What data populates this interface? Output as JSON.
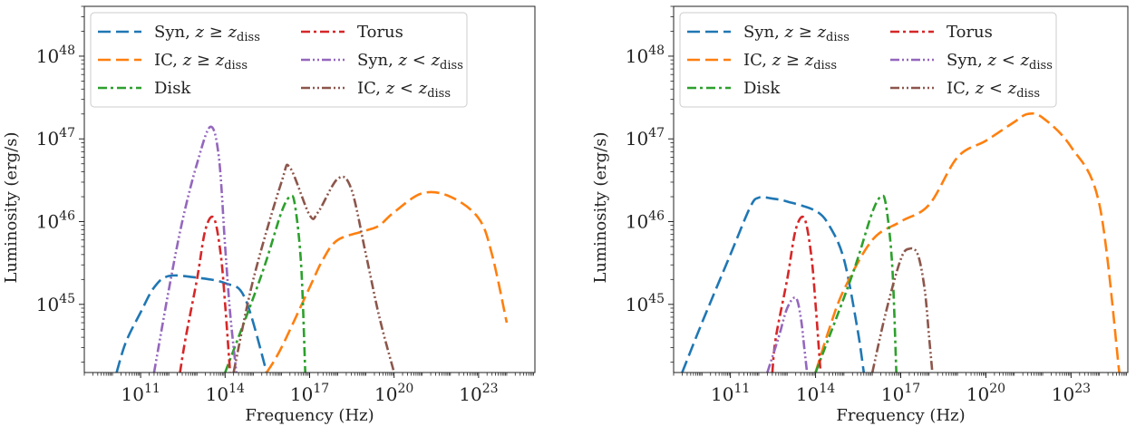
{
  "chart_data": [
    {
      "type": "line",
      "xlabel": "Frequency (Hz)",
      "ylabel": "Luminosity (erg/s)",
      "x_scale": "log",
      "y_scale": "log",
      "xlim": [
        1000000000.0,
        1e+25
      ],
      "ylim": [
        1.5e+44,
        4e+48
      ],
      "xticks": [
        {
          "value": 100000000000.0,
          "label": "10^11"
        },
        {
          "value": 100000000000000.0,
          "label": "10^14"
        },
        {
          "value": 1e+17,
          "label": "10^17"
        },
        {
          "value": 1e+20,
          "label": "10^20"
        },
        {
          "value": 1e+23,
          "label": "10^23"
        }
      ],
      "yticks": [
        {
          "value": 1e+45,
          "label": "10^45"
        },
        {
          "value": 1e+46,
          "label": "10^46"
        },
        {
          "value": 1e+47,
          "label": "10^47"
        },
        {
          "value": 1e+48,
          "label": "10^48"
        }
      ],
      "legend_position": "top",
      "series": [
        {
          "name": "Syn, z ≥ z_diss",
          "color": "#1f77b4",
          "dash": "dashed",
          "x": [
            14000000000.0,
            30000000000.0,
            100000000000.0,
            300000000000.0,
            1000000000000.0,
            10000000000000.0,
            100000000000000.0,
            500000000000000.0,
            3000000000000000.0
          ],
          "y": [
            1.5e+44,
            3.5e+44,
            8e+44,
            1.6e+45,
            2.2e+45,
            2.1e+45,
            1.8e+45,
            1.2e+45,
            1.5e+44
          ]
        },
        {
          "name": "IC, z ≥ z_diss",
          "color": "#ff7f0e",
          "dash": "dashed",
          "x": [
            3000000000000000.0,
            1e+16,
            1e+17,
            3e+17,
            1e+18,
            1e+19,
            3e+19,
            1e+20,
            1e+21,
            1e+22,
            1e+23,
            3e+23,
            1e+24
          ],
          "y": [
            1.5e+44,
            3e+44,
            1.6e+45,
            3.5e+45,
            6e+45,
            7.8e+45,
            9e+45,
            1.3e+46,
            2.2e+46,
            2e+46,
            1.1e+46,
            4e+45,
            6e+44
          ]
        },
        {
          "name": "Disk",
          "color": "#2ca02c",
          "dash": "dashdot",
          "x": [
            100000000000000.0,
            1000000000000000.0,
            3000000000000000.0,
            1e+16,
            2e+16,
            3e+16,
            5e+16,
            7e+16
          ],
          "y": [
            1.5e+44,
            1.2e+45,
            3.5e+45,
            1.3e+46,
            2e+46,
            1.6e+46,
            3e+45,
            1.5e+44
          ]
        },
        {
          "name": "Torus",
          "color": "#d62728",
          "dash": "dashdot",
          "x": [
            2500000000000.0,
            4000000000000.0,
            10000000000000.0,
            20000000000000.0,
            40000000000000.0,
            70000000000000.0,
            100000000000000.0,
            150000000000000.0
          ],
          "y": [
            1.5e+44,
            4e+44,
            2e+45,
            8e+45,
            1.1e+46,
            4e+45,
            1e+45,
            1.5e+44
          ]
        },
        {
          "name": "Syn, z < z_diss",
          "color": "#9467bd",
          "dash": "dashdotdot",
          "x": [
            300000000000.0,
            1000000000000.0,
            3000000000000.0,
            10000000000000.0,
            30000000000000.0,
            60000000000000.0,
            100000000000000.0,
            150000000000000.0,
            250000000000000.0
          ],
          "y": [
            1.5e+44,
            1.5e+45,
            1e+46,
            5e+46,
            1.4e+47,
            6e+46,
            5e+45,
            8e+44,
            1.5e+44
          ]
        },
        {
          "name": "IC, z < z_diss",
          "color": "#8c564b",
          "dash": "dashdotdot",
          "x": [
            200000000000000.0,
            1000000000000000.0,
            1e+16,
            2e+16,
            1e+17,
            2e+17,
            1e+18,
            3e+18,
            1e+19,
            3e+19,
            1e+20
          ],
          "y": [
            1.5e+44,
            2e+45,
            3e+46,
            4.5e+46,
            1.2e+46,
            1.3e+46,
            3.3e+46,
            2.5e+46,
            4e+45,
            7e+44,
            1.5e+44
          ]
        }
      ],
      "legend": [
        "Syn, z ≥ z_diss",
        "IC, z ≥ z_diss",
        "Disk",
        "Torus",
        "Syn, z < z_diss",
        "IC, z < z_diss"
      ]
    },
    {
      "type": "line",
      "xlabel": "Frequency (Hz)",
      "ylabel": "Luminosity (erg/s)",
      "x_scale": "log",
      "y_scale": "log",
      "xlim": [
        1000000000.0,
        1e+25
      ],
      "ylim": [
        1.5e+44,
        4e+48
      ],
      "xticks": [
        {
          "value": 100000000000.0,
          "label": "10^11"
        },
        {
          "value": 100000000000000.0,
          "label": "10^14"
        },
        {
          "value": 1e+17,
          "label": "10^17"
        },
        {
          "value": 1e+20,
          "label": "10^20"
        },
        {
          "value": 1e+23,
          "label": "10^23"
        }
      ],
      "yticks": [
        {
          "value": 1e+45,
          "label": "10^45"
        },
        {
          "value": 1e+46,
          "label": "10^46"
        },
        {
          "value": 1e+47,
          "label": "10^47"
        },
        {
          "value": 1e+48,
          "label": "10^48"
        }
      ],
      "legend_position": "top",
      "series": [
        {
          "name": "Syn, z ≥ z_diss",
          "color": "#1f77b4",
          "dash": "dashed",
          "x": [
            2000000000.0,
            10000000000.0,
            100000000000.0,
            500000000000.0,
            1000000000000.0,
            3000000000000.0,
            10000000000000.0,
            100000000000000.0,
            300000000000000.0,
            1000000000000000.0,
            3000000000000000.0,
            5000000000000000.0
          ],
          "y": [
            1.5e+44,
            6e+44,
            4e+45,
            1.5e+46,
            1.95e+46,
            1.9e+46,
            1.75e+46,
            1.35e+46,
            9e+45,
            3.5e+45,
            5e+44,
            1.5e+44
          ]
        },
        {
          "name": "IC, z ≥ z_diss",
          "color": "#ff7f0e",
          "dash": "dashed",
          "x": [
            100000000000000.0,
            300000000000000.0,
            1000000000000000.0,
            1e+16,
            1e+17,
            1e+18,
            1e+19,
            1e+20,
            1e+21,
            3e+21,
            1e+22,
            1e+23,
            1e+24,
            5e+24
          ],
          "y": [
            1.5e+44,
            5e+44,
            1.5e+45,
            6e+45,
            1e+46,
            1.6e+46,
            6e+46,
            9.5e+46,
            1.6e+47,
            2e+47,
            1.8e+47,
            8e+46,
            1.6e+46,
            1.5e+44
          ]
        },
        {
          "name": "Disk",
          "color": "#2ca02c",
          "dash": "dashdot",
          "x": [
            100000000000000.0,
            1000000000000000.0,
            3000000000000000.0,
            1e+16,
            2e+16,
            3e+16,
            5e+16,
            7e+16
          ],
          "y": [
            1.5e+44,
            1.2e+45,
            3.5e+45,
            1.3e+46,
            2e+46,
            1.6e+46,
            3e+45,
            1.5e+44
          ]
        },
        {
          "name": "Torus",
          "color": "#d62728",
          "dash": "dashdot",
          "x": [
            3000000000000.0,
            4000000000000.0,
            10000000000000.0,
            20000000000000.0,
            40000000000000.0,
            70000000000000.0,
            100000000000000.0,
            150000000000000.0
          ],
          "y": [
            1.5e+44,
            4e+44,
            2e+45,
            8e+45,
            1.1e+46,
            4e+45,
            1e+45,
            1.5e+44
          ]
        },
        {
          "name": "Syn, z < z_diss",
          "color": "#9467bd",
          "dash": "dashdotdot",
          "x": [
            2000000000000.0,
            5000000000000.0,
            10000000000000.0,
            20000000000000.0,
            30000000000000.0,
            40000000000000.0,
            50000000000000.0
          ],
          "y": [
            1.5e+44,
            4e+44,
            9e+44,
            1.2e+45,
            7e+44,
            3e+44,
            1.5e+44
          ]
        },
        {
          "name": "IC, z < z_diss",
          "color": "#8c564b",
          "dash": "dashdotdot",
          "x": [
            1e+16,
            3e+16,
            1e+17,
            2e+17,
            4e+17,
            7e+17,
            1e+18,
            1.3e+18
          ],
          "y": [
            1.5e+44,
            8e+44,
            3.5e+45,
            4.7e+45,
            4e+45,
            1.5e+45,
            4e+44,
            1.5e+44
          ]
        }
      ],
      "legend": [
        "Syn, z ≥ z_diss",
        "IC, z ≥ z_diss",
        "Disk",
        "Torus",
        "Syn, z < z_diss",
        "IC, z < z_diss"
      ]
    }
  ]
}
